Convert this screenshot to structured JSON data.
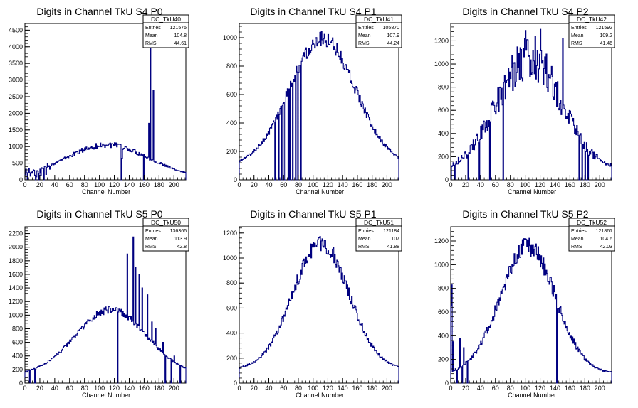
{
  "chart_data": [
    {
      "type": "histogram",
      "title": "Digits in Channel TkU S4 P0",
      "xlabel": "Channel Number",
      "xlim": [
        0,
        216
      ],
      "ylim": [
        0,
        4700
      ],
      "yticks": [
        0,
        500,
        1000,
        1500,
        2000,
        2500,
        3000,
        3500,
        4000,
        4500
      ],
      "xticks": [
        0,
        20,
        40,
        60,
        80,
        100,
        120,
        140,
        160,
        180,
        200
      ],
      "stats": {
        "name": "DC_TkU40",
        "entries": "121575",
        "mean": "104.8",
        "rms": "44.61"
      },
      "shape": {
        "kind": "dome",
        "peak": 1050,
        "center": 110,
        "width": 70,
        "base": 60,
        "noise": 0.08
      },
      "points": [
        [
          0,
          150
        ],
        [
          1,
          320
        ],
        [
          3,
          120
        ],
        [
          5,
          350
        ],
        [
          7,
          110
        ],
        [
          9,
          200
        ],
        [
          11,
          300
        ],
        [
          13,
          140
        ],
        [
          15,
          90
        ],
        [
          17,
          260
        ],
        [
          19,
          200
        ],
        [
          21,
          120
        ],
        [
          24,
          340
        ],
        [
          28,
          160
        ],
        [
          30,
          480
        ],
        [
          33,
          320
        ],
        [
          130,
          650
        ],
        [
          168,
          4420
        ],
        [
          172,
          2700
        ],
        [
          166,
          1700
        ]
      ],
      "dead": [
        3,
        14,
        18,
        25,
        129,
        159
      ],
      "zero_after": 218
    },
    {
      "type": "histogram",
      "title": "Digits in Channel TkU S4 P1",
      "xlabel": "Channel Number",
      "xlim": [
        0,
        216
      ],
      "ylim": [
        0,
        1100
      ],
      "yticks": [
        0,
        200,
        400,
        600,
        800,
        1000
      ],
      "xticks": [
        0,
        20,
        40,
        60,
        80,
        100,
        120,
        140,
        160,
        180,
        200
      ],
      "stats": {
        "name": "DC_TkU41",
        "entries": "105870",
        "mean": "107.9",
        "rms": "44.24"
      },
      "shape": {
        "kind": "dome",
        "peak": 1000,
        "center": 112,
        "width": 56,
        "base": 100,
        "noise": 0.06
      },
      "points": [],
      "dead": [
        48,
        53,
        57,
        61,
        62,
        66,
        68,
        72,
        76,
        79,
        83
      ],
      "zero_after": 218
    },
    {
      "type": "histogram",
      "title": "Digits in Channel TkU S4 P2",
      "xlabel": "Channel Number",
      "xlim": [
        0,
        216
      ],
      "ylim": [
        0,
        1350
      ],
      "yticks": [
        0,
        200,
        400,
        600,
        800,
        1000,
        1200
      ],
      "xticks": [
        0,
        20,
        40,
        60,
        80,
        100,
        120,
        140,
        160,
        180,
        200
      ],
      "stats": {
        "name": "DC_TkU42",
        "entries": "121592",
        "mean": "109.2",
        "rms": "41.46"
      },
      "shape": {
        "kind": "dome",
        "peak": 1050,
        "center": 105,
        "width": 55,
        "base": 80,
        "noise": 0.18
      },
      "points": [
        [
          100,
          1290
        ],
        [
          120,
          1300
        ],
        [
          113,
          1240
        ],
        [
          150,
          1220
        ]
      ],
      "dead": [
        0,
        5,
        23,
        38,
        52,
        70,
        172,
        176,
        180,
        184
      ],
      "zero_after": 218
    },
    {
      "type": "histogram",
      "title": "Digits in Channel TkU S5 P0",
      "xlabel": "Channel Number",
      "xlim": [
        0,
        216
      ],
      "ylim": [
        0,
        2300
      ],
      "yticks": [
        0,
        200,
        400,
        600,
        800,
        1000,
        1200,
        1400,
        1600,
        1800,
        2000,
        2200
      ],
      "xticks": [
        0,
        20,
        40,
        60,
        80,
        100,
        120,
        140,
        160,
        180,
        200
      ],
      "stats": {
        "name": "DC_TkU50",
        "entries": "136366",
        "mean": "113.9",
        "rms": "42.8"
      },
      "shape": {
        "kind": "dome",
        "peak": 1080,
        "center": 115,
        "width": 60,
        "base": 120,
        "noise": 0.05
      },
      "points": [
        [
          137,
          1900
        ],
        [
          145,
          2150
        ],
        [
          148,
          1700
        ],
        [
          153,
          1600
        ],
        [
          157,
          1400
        ],
        [
          164,
          1300
        ],
        [
          170,
          900
        ],
        [
          175,
          800
        ],
        [
          185,
          600
        ],
        [
          200,
          400
        ]
      ],
      "dead": [
        6,
        13,
        124,
        188,
        196,
        208
      ],
      "zero_after": 218
    },
    {
      "type": "histogram",
      "title": "Digits in Channel TkU S5 P1",
      "xlabel": "Channel Number",
      "xlim": [
        0,
        216
      ],
      "ylim": [
        0,
        1250
      ],
      "yticks": [
        0,
        200,
        400,
        600,
        800,
        1000,
        1200
      ],
      "xticks": [
        0,
        20,
        40,
        60,
        80,
        100,
        120,
        140,
        160,
        180,
        200
      ],
      "stats": {
        "name": "DC_TkU51",
        "entries": "121184",
        "mean": "107",
        "rms": "41.88"
      },
      "shape": {
        "kind": "dome",
        "peak": 1120,
        "center": 110,
        "width": 48,
        "base": 110,
        "noise": 0.06
      },
      "points": [],
      "dead": [],
      "zero_after": 218
    },
    {
      "type": "histogram",
      "title": "Digits in Channel TkU S5 P2",
      "xlabel": "Channel Number",
      "xlim": [
        0,
        216
      ],
      "ylim": [
        0,
        1320
      ],
      "yticks": [
        0,
        200,
        400,
        600,
        800,
        1000,
        1200
      ],
      "xticks": [
        0,
        20,
        40,
        60,
        80,
        100,
        120,
        140,
        160,
        180,
        200
      ],
      "stats": {
        "name": "DC_TkU52",
        "entries": "121861",
        "mean": "104.6",
        "rms": "42.03"
      },
      "shape": {
        "kind": "dome",
        "peak": 1150,
        "center": 103,
        "width": 47,
        "base": 80,
        "noise": 0.08
      },
      "points": [
        [
          1,
          830
        ],
        [
          0,
          650
        ],
        [
          3,
          350
        ],
        [
          12,
          380
        ],
        [
          17,
          300
        ]
      ],
      "dead": [
        8,
        15,
        22,
        142
      ],
      "zero_after": 218
    }
  ]
}
